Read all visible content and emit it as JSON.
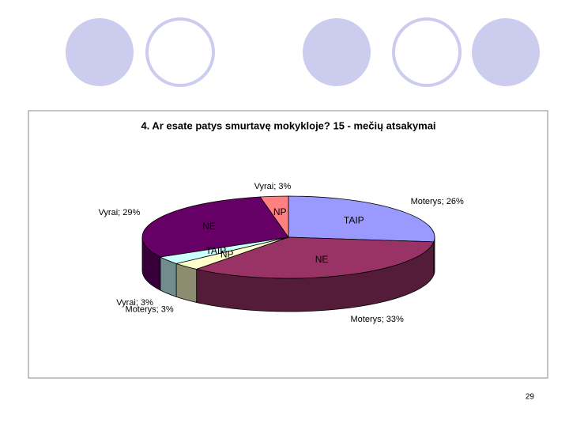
{
  "chart_data": {
    "type": "pie",
    "title": "4. Ar esate patys smurtavę mokykloje?   15 - mečių atsakymai",
    "categories": [
      "TAIP",
      "NE",
      "NP",
      "TAIP",
      "NE",
      "NP"
    ],
    "values": [
      26,
      33,
      3,
      3,
      29,
      3
    ],
    "value_labels": [
      "Moterys; 26%",
      "Moterys; 33%",
      "Moterys; 3%",
      "Vyrai; 3%",
      "Vyrai; 29%",
      "Vyrai; 3%"
    ],
    "colors": [
      "#9999ff",
      "#993366",
      "#ffffcc",
      "#ccffff",
      "#660066",
      "#ff8080"
    ]
  },
  "page_number": "29"
}
